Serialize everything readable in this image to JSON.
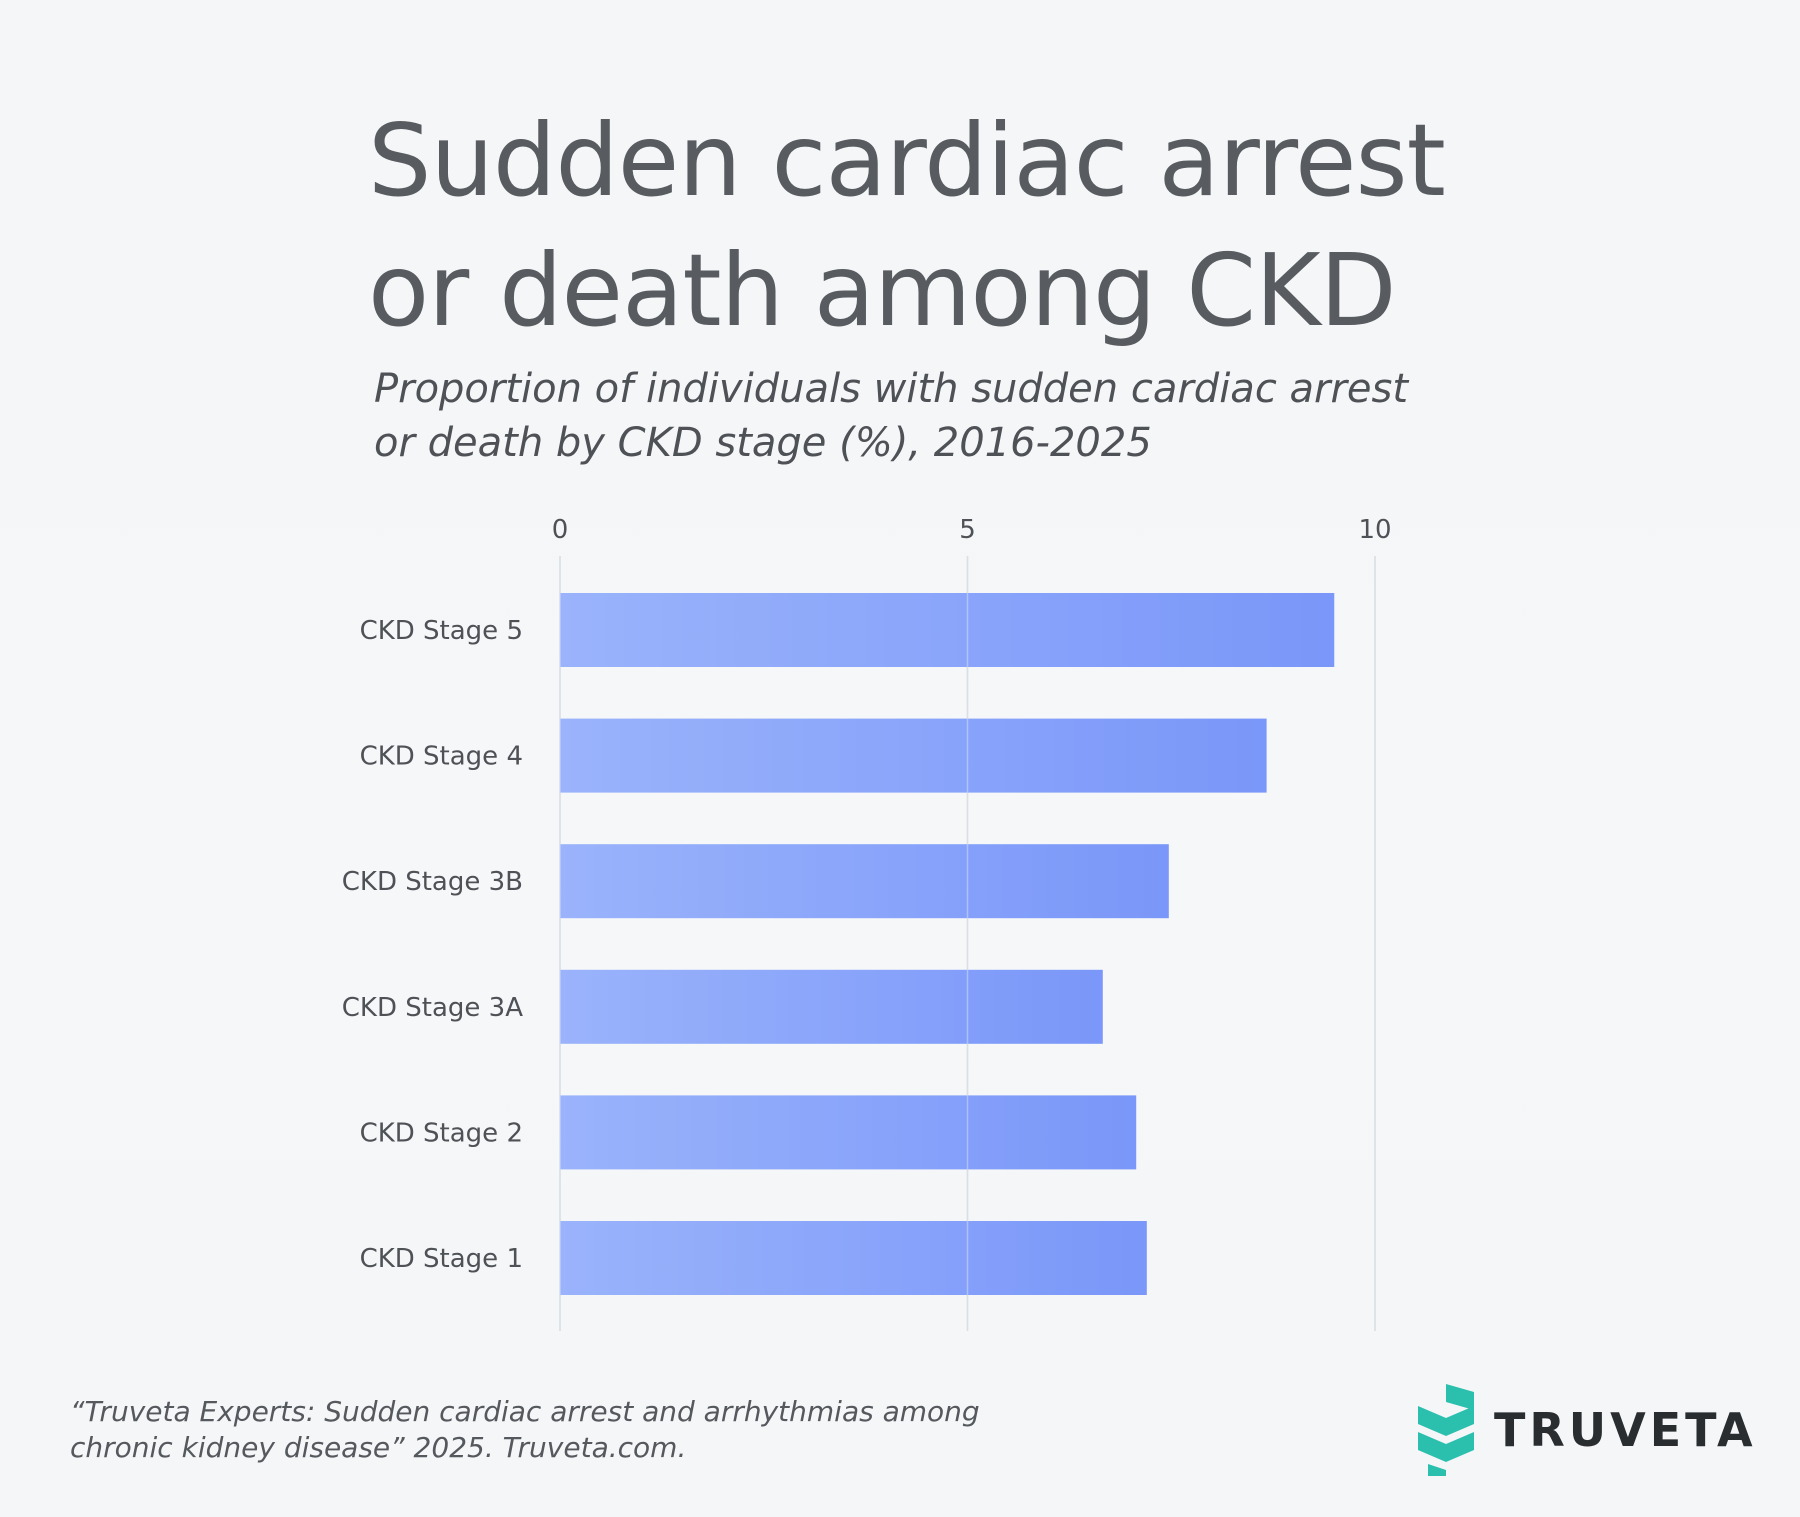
{
  "title_lines": [
    "Sudden cardiac arrest",
    "or death among CKD"
  ],
  "subtitle_lines": [
    "Proportion of individuals with sudden cardiac arrest",
    "or death by CKD stage (%), 2016-2025"
  ],
  "source_lines": [
    "“Truveta Experts: Sudden cardiac arrest and arrhythmias among",
    "chronic kidney disease” 2025. Truveta.com."
  ],
  "brand": {
    "name": "TRUVETA",
    "logo_icon": "truveta-chevron-logo-icon",
    "logo_color": "#2bbfae"
  },
  "colors": {
    "bar_start": "#9ab3fb",
    "bar_end": "#7a97f9",
    "grid": "#c7ced6",
    "text": "#4e5155"
  },
  "chart_data": {
    "type": "bar",
    "orientation": "horizontal",
    "categories": [
      "CKD Stage 5",
      "CKD Stage 4",
      "CKD Stage 3B",
      "CKD Stage 3A",
      "CKD Stage 2",
      "CKD Stage 1"
    ],
    "values": [
      9.5,
      8.67,
      7.47,
      6.66,
      7.07,
      7.2
    ],
    "xlim": [
      0,
      10
    ],
    "xticks": [
      0,
      5,
      10
    ],
    "xtick_labels": [
      "0",
      "5",
      "10"
    ],
    "x_axis_position": "top",
    "grid": true,
    "legend": "none",
    "title": "",
    "xlabel": "",
    "ylabel": ""
  }
}
